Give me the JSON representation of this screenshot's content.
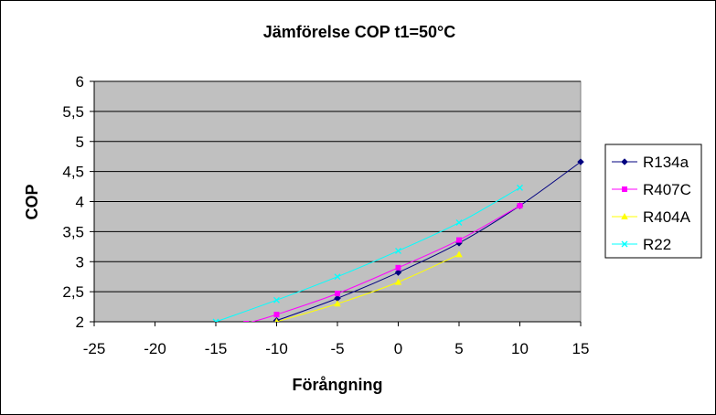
{
  "chart_data": {
    "type": "line",
    "title": "Jämförelse COP t1=50°C",
    "xlabel": "Förångning",
    "ylabel": "COP",
    "xlim": [
      -25,
      15
    ],
    "ylim": [
      2,
      6
    ],
    "xticks": [
      "-25",
      "-20",
      "-15",
      "-10",
      "-5",
      "0",
      "5",
      "10",
      "15"
    ],
    "yticks": [
      "2",
      "2,5",
      "3",
      "3,5",
      "4",
      "4,5",
      "5",
      "5,5",
      "6"
    ],
    "grid": true,
    "plot_background": "#c0c0c0",
    "legend_position": "right",
    "series": [
      {
        "name": "R134a",
        "color": "#000080",
        "marker": "diamond",
        "x": [
          -10,
          -5,
          0,
          5,
          10,
          15
        ],
        "y": [
          2.02,
          2.39,
          2.82,
          3.31,
          3.93,
          4.66
        ]
      },
      {
        "name": "R407C",
        "color": "#ff00ff",
        "marker": "square",
        "x": [
          -12.5,
          -10,
          -5,
          0,
          5,
          10
        ],
        "y": [
          1.97,
          2.12,
          2.47,
          2.9,
          3.36,
          3.93
        ]
      },
      {
        "name": "R404A",
        "color": "#ffff00",
        "marker": "triangle",
        "x": [
          -10,
          -5,
          0,
          5
        ],
        "y": [
          2.0,
          2.3,
          2.66,
          3.12
        ]
      },
      {
        "name": "R22",
        "color": "#00ffff",
        "marker": "x",
        "x": [
          -15,
          -10,
          -5,
          0,
          5,
          10
        ],
        "y": [
          2.0,
          2.36,
          2.75,
          3.18,
          3.65,
          4.23
        ]
      }
    ]
  }
}
